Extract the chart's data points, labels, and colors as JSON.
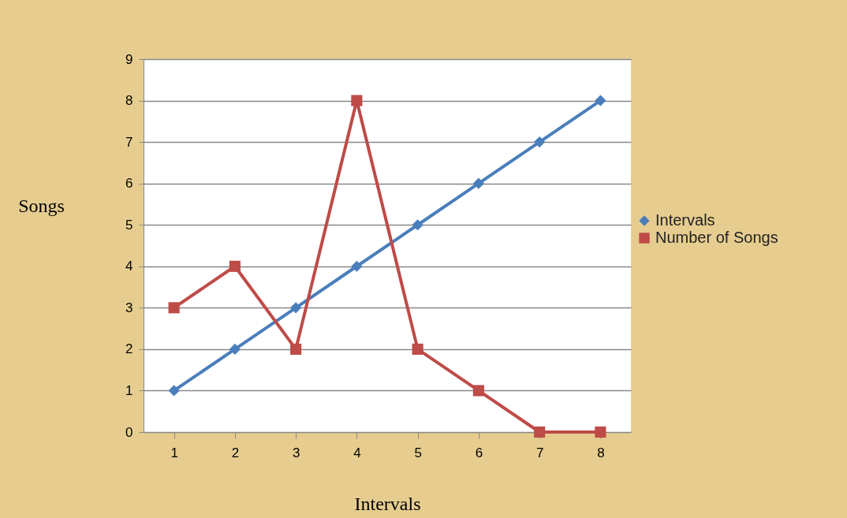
{
  "chart_data": {
    "type": "line",
    "xlabel": "Intervals",
    "ylabel": "Songs",
    "categories": [
      "1",
      "2",
      "3",
      "4",
      "5",
      "6",
      "7",
      "8"
    ],
    "series": [
      {
        "name": "Intervals",
        "color": "#4a7ebb",
        "marker": "diamond",
        "values": [
          1,
          2,
          3,
          4,
          5,
          6,
          7,
          8
        ]
      },
      {
        "name": "Number of Songs",
        "color": "#be4b48",
        "marker": "square",
        "values": [
          3,
          4,
          2,
          8,
          2,
          1,
          0,
          0
        ]
      }
    ],
    "ylim": [
      0,
      9
    ],
    "yticks": [
      0,
      1,
      2,
      3,
      4,
      5,
      6,
      7,
      8,
      9
    ],
    "grid": "y",
    "legend": "right",
    "line_style": "solid"
  }
}
